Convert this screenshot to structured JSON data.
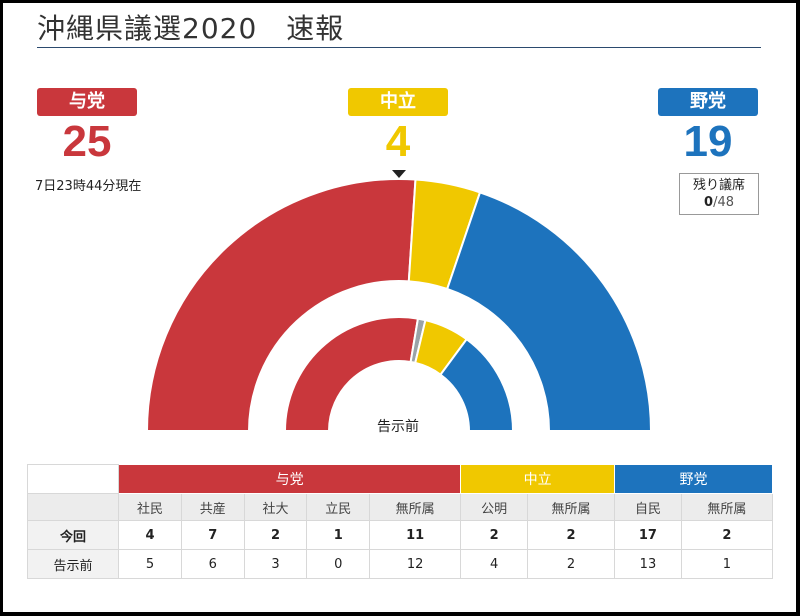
{
  "title": "沖縄県議選2020　速報",
  "blocs": {
    "ruling": {
      "label": "与党",
      "count": "25",
      "color": "#c9373c"
    },
    "neutral": {
      "label": "中立",
      "count": "4",
      "color": "#f0c800"
    },
    "opposition": {
      "label": "野党",
      "count": "19",
      "color": "#1d73bd"
    }
  },
  "as_of": "7日23時44分現在",
  "remaining": {
    "label": "残り議席",
    "value": "0",
    "total": "/48"
  },
  "inner_label": "告示前",
  "colors": {
    "minor_gray": "#9aa3a8",
    "text": "#222222"
  },
  "chart_data": {
    "type": "pie",
    "title": "",
    "total_seats": 48,
    "outer_ring": {
      "name": "",
      "slices": [
        {
          "label": "与党",
          "value": 25,
          "color": "#c9373c"
        },
        {
          "label": "中立",
          "value": 4,
          "color": "#f0c800"
        },
        {
          "label": "野党",
          "value": 19,
          "color": "#1d73bd"
        }
      ]
    },
    "inner_ring": {
      "name": "告示前",
      "slices": [
        {
          "label": "与党",
          "value": 26,
          "color": "#c9373c"
        },
        {
          "label": "",
          "value": 1,
          "color": "#9aa3a8"
        },
        {
          "label": "中立",
          "value": 6,
          "color": "#f0c800"
        },
        {
          "label": "野党",
          "value": 14,
          "color": "#1d73bd"
        }
      ]
    }
  },
  "table": {
    "groups": [
      {
        "label": "与党",
        "span": 5,
        "color": "#c9373c"
      },
      {
        "label": "中立",
        "span": 2,
        "color": "#f0c800"
      },
      {
        "label": "野党",
        "span": 2,
        "color": "#1d73bd"
      }
    ],
    "columns": [
      "社民",
      "共産",
      "社大",
      "立民",
      "無所属",
      "公明",
      "無所属",
      "自民",
      "無所属"
    ],
    "rows": [
      {
        "label": "今回",
        "values": [
          "4",
          "7",
          "2",
          "1",
          "11",
          "2",
          "2",
          "17",
          "2"
        ]
      },
      {
        "label": "告示前",
        "values": [
          "5",
          "6",
          "3",
          "0",
          "12",
          "4",
          "2",
          "13",
          "1"
        ]
      }
    ]
  }
}
